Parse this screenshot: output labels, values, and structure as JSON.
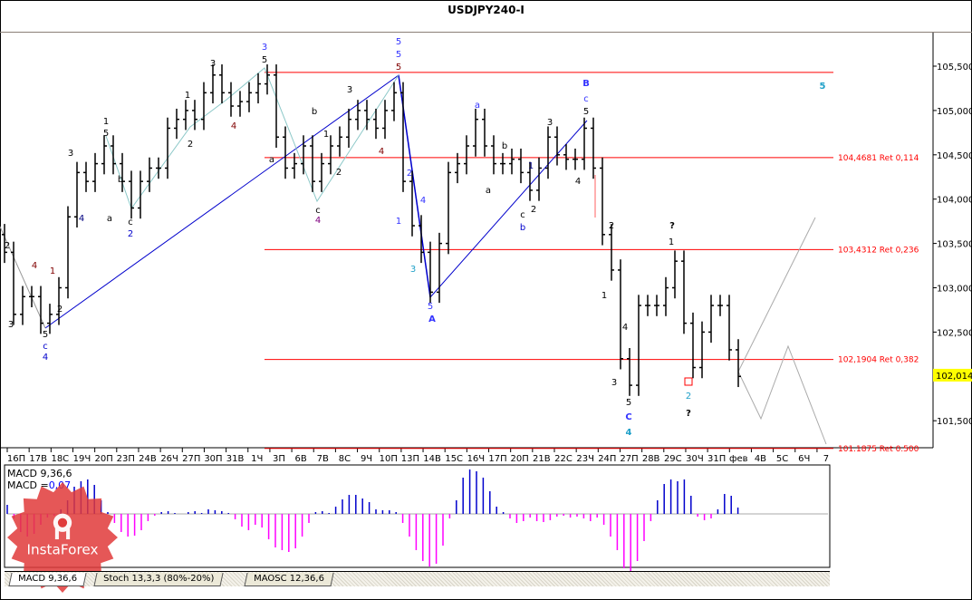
{
  "title": "USDJPY240-I",
  "chart_data": {
    "type": "ohlc",
    "symbol": "USDJPY240-I",
    "title": "USDJPY240-I",
    "ylim": [
      101.1,
      105.9
    ],
    "price_ticks": [
      "105,500",
      "105,000",
      "104,500",
      "104,000",
      "103,500",
      "103,000",
      "102,500",
      "101,500"
    ],
    "price_tick_values": [
      105.5,
      105.0,
      104.5,
      104.0,
      103.5,
      103.0,
      102.5,
      101.5
    ],
    "current_price": 102.014,
    "current_price_label": "102,014",
    "x_tick_labels": [
      "16П",
      "17В",
      "18С",
      "19Ч",
      "20П",
      "23П",
      "24В",
      "26Ч",
      "27П",
      "30П",
      "31В",
      "1Ч",
      "3П",
      "6В",
      "7В",
      "8С",
      "9Ч",
      "10П",
      "13П",
      "14В",
      "15С",
      "16Ч",
      "17П",
      "20П",
      "21В",
      "22С",
      "23Ч",
      "24П",
      "27П",
      "28В",
      "29С",
      "30Ч",
      "31П",
      "фев",
      "4В",
      "5С",
      "6Ч",
      "7"
    ],
    "closes": [
      103.4,
      102.7,
      102.9,
      102.9,
      102.6,
      102.7,
      103.0,
      103.8,
      104.3,
      104.2,
      104.4,
      104.6,
      104.4,
      104.2,
      103.9,
      104.2,
      104.35,
      104.35,
      104.8,
      104.9,
      105.0,
      104.9,
      105.2,
      105.4,
      105.2,
      105.05,
      105.1,
      105.2,
      105.3,
      105.4,
      104.7,
      104.35,
      104.4,
      104.6,
      104.2,
      104.4,
      104.6,
      104.7,
      104.9,
      105.0,
      104.9,
      104.8,
      105.0,
      105.2,
      104.2,
      103.7,
      103.4,
      102.95,
      103.5,
      104.3,
      104.4,
      104.6,
      104.9,
      104.6,
      104.4,
      104.4,
      104.45,
      104.3,
      104.1,
      104.35,
      104.7,
      104.5,
      104.45,
      104.45,
      104.8,
      104.35,
      103.6,
      103.2,
      102.2,
      101.9,
      102.8,
      102.8,
      102.8,
      103.0,
      103.3,
      102.6,
      102.1,
      102.5,
      102.8,
      102.8,
      102.3,
      102.0
    ],
    "levels": [
      {
        "price": 105.43,
        "label": ""
      },
      {
        "price": 104.4681,
        "label": "104,4681 Ret 0,114"
      },
      {
        "price": 103.4312,
        "label": "103,4312 Ret 0,236"
      },
      {
        "price": 102.1904,
        "label": "102,1904 Ret 0,382"
      },
      {
        "price": 101.1875,
        "label": "101.1875 Ret 0.500"
      }
    ],
    "level_color": "#ff0000",
    "wave_labels": [
      {
        "text": "2",
        "color": "#000000"
      },
      {
        "text": "4",
        "color": "#800000"
      },
      {
        "text": "1",
        "color": "#800000"
      },
      {
        "text": "3",
        "color": "#000000"
      },
      {
        "text": "2",
        "color": "#000000"
      },
      {
        "text": "5",
        "color": "#000000"
      },
      {
        "text": "c",
        "color": "#0000cc"
      },
      {
        "text": "4",
        "color": "#0000cc"
      },
      {
        "text": "3",
        "color": "#000000"
      },
      {
        "text": "4",
        "color": "#000080"
      },
      {
        "text": "1",
        "color": "#000000"
      },
      {
        "text": "5",
        "color": "#000000"
      },
      {
        "text": "a",
        "color": "#000000"
      },
      {
        "text": "b",
        "color": "#000000"
      },
      {
        "text": "c",
        "color": "#000000"
      },
      {
        "text": "2",
        "color": "#0000cc"
      },
      {
        "text": "3",
        "color": "#000000"
      },
      {
        "text": "1",
        "color": "#000000"
      },
      {
        "text": "2",
        "color": "#000000"
      },
      {
        "text": "4",
        "color": "#800000"
      },
      {
        "text": "3",
        "color": "#3333ff"
      },
      {
        "text": "5",
        "color": "#000000"
      },
      {
        "text": "a",
        "color": "#000000"
      },
      {
        "text": "b",
        "color": "#000000"
      },
      {
        "text": "c",
        "color": "#000000"
      },
      {
        "text": "4",
        "color": "#800080"
      },
      {
        "text": "1",
        "color": "#000000"
      },
      {
        "text": "2",
        "color": "#000000"
      },
      {
        "text": "3",
        "color": "#000000"
      },
      {
        "text": "4",
        "color": "#800000"
      },
      {
        "text": "5",
        "color": "#3333ff"
      },
      {
        "text": "5",
        "color": "#3333ff"
      },
      {
        "text": "5",
        "color": "#800000"
      },
      {
        "text": "2",
        "color": "#3333ff"
      },
      {
        "text": "1",
        "color": "#3333ff"
      },
      {
        "text": "4",
        "color": "#3333ff"
      },
      {
        "text": "3",
        "color": "#1fa0c8"
      },
      {
        "text": "5",
        "color": "#3333ff"
      },
      {
        "text": "A",
        "color": "#3333ff"
      },
      {
        "text": "a",
        "color": "#3333ff"
      },
      {
        "text": "b",
        "color": "#000000"
      },
      {
        "text": "a",
        "color": "#000000"
      },
      {
        "text": "1",
        "color": "#000080"
      },
      {
        "text": "3",
        "color": "#000000"
      },
      {
        "text": "c",
        "color": "#000000"
      },
      {
        "text": "b",
        "color": "#0000cc"
      },
      {
        "text": "2",
        "color": "#000000"
      },
      {
        "text": "4",
        "color": "#000000"
      },
      {
        "text": "B",
        "color": "#3333ff"
      },
      {
        "text": "c",
        "color": "#3333ff"
      },
      {
        "text": "5",
        "color": "#000000"
      },
      {
        "text": "2",
        "color": "#000000"
      },
      {
        "text": "1",
        "color": "#000000"
      },
      {
        "text": "4",
        "color": "#000000"
      },
      {
        "text": "3",
        "color": "#000000"
      },
      {
        "text": "5",
        "color": "#000000"
      },
      {
        "text": "C",
        "color": "#3333ff"
      },
      {
        "text": "4",
        "color": "#1fa0c8"
      },
      {
        "text": "?",
        "color": "#000000"
      },
      {
        "text": "1",
        "color": "#000000"
      },
      {
        "text": "2",
        "color": "#1fa0c8"
      },
      {
        "text": "?",
        "color": "#000000"
      },
      {
        "text": "5",
        "color": "#1fa0c8"
      }
    ]
  },
  "macd": {
    "title": "MACD 9,36,6",
    "value_label": "MACD =",
    "value": "0,07",
    "positive_color": "#0000cc",
    "negative_color": "#ff00ff",
    "histogram": [
      0.1,
      -0.05,
      -0.2,
      -0.25,
      -0.22,
      -0.12,
      -0.04,
      -0.02,
      0.05,
      0.15,
      0.3,
      0.36,
      0.38,
      0.32,
      0.15,
      0.02,
      -0.1,
      -0.2,
      -0.25,
      -0.24,
      -0.18,
      -0.08,
      -0.02,
      0.02,
      0.03,
      0.01,
      0.0,
      0.02,
      0.03,
      0.01,
      0.05,
      0.04,
      0.03,
      0.01,
      -0.06,
      -0.14,
      -0.18,
      -0.12,
      -0.15,
      -0.28,
      -0.37,
      -0.4,
      -0.42,
      -0.38,
      -0.25,
      -0.1,
      0.02,
      0.03,
      0.01,
      0.08,
      0.16,
      0.21,
      0.21,
      0.17,
      0.13,
      0.05,
      0.04,
      0.04,
      0.02,
      -0.1,
      -0.25,
      -0.4,
      -0.52,
      -0.58,
      -0.55,
      -0.35,
      -0.05,
      0.15,
      0.4,
      0.49,
      0.47,
      0.4,
      0.25,
      0.08,
      0.02,
      -0.05,
      -0.1,
      -0.08,
      -0.04,
      -0.08,
      -0.09,
      -0.07,
      -0.03,
      -0.02,
      -0.04,
      -0.03,
      -0.05,
      -0.08,
      -0.04,
      -0.12,
      -0.25,
      -0.4,
      -0.6,
      -0.68,
      -0.52,
      -0.3,
      -0.08,
      0.15,
      0.33,
      0.38,
      0.36,
      0.38,
      0.2,
      -0.03,
      -0.07,
      -0.05,
      0.05,
      0.22,
      0.2,
      0.07
    ]
  },
  "tabs": [
    {
      "label": "MACD 9,36,6",
      "active": true
    },
    {
      "label": "Stoch 13,3,3 (80%-20%)",
      "active": false
    },
    {
      "label": "MAOSC 12,36,6",
      "active": false
    }
  ],
  "watermark": "InstaForex"
}
